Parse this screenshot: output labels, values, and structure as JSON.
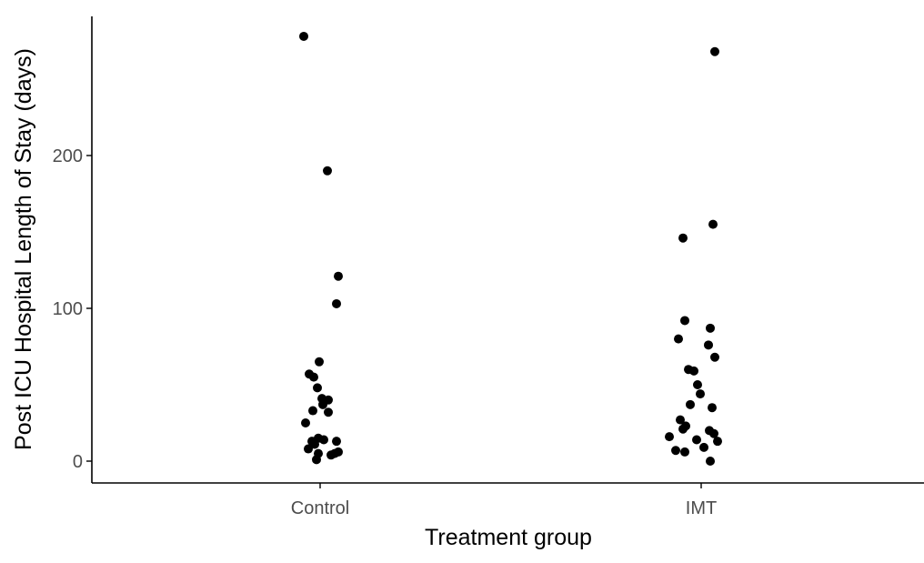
{
  "chart_data": {
    "type": "scatter",
    "title": "",
    "xlabel": "Treatment group",
    "ylabel": "Post ICU Hospital Length of Stay (days)",
    "categories": [
      "Control",
      "IMT"
    ],
    "yticks": [
      0,
      100,
      200
    ],
    "ylim": [
      -15,
      295
    ],
    "grid": false,
    "legend": "none",
    "point_color": "#000000",
    "axis_color": "#000000",
    "tick_label_color": "#4d4d4d",
    "series": [
      {
        "group": "Control",
        "points": [
          {
            "jitter": -0.18,
            "y": 278
          },
          {
            "jitter": 0.08,
            "y": 190
          },
          {
            "jitter": 0.2,
            "y": 121
          },
          {
            "jitter": 0.18,
            "y": 103
          },
          {
            "jitter": -0.01,
            "y": 65
          },
          {
            "jitter": -0.12,
            "y": 57
          },
          {
            "jitter": -0.07,
            "y": 55
          },
          {
            "jitter": -0.03,
            "y": 48
          },
          {
            "jitter": 0.02,
            "y": 41
          },
          {
            "jitter": 0.09,
            "y": 40
          },
          {
            "jitter": 0.03,
            "y": 37
          },
          {
            "jitter": -0.08,
            "y": 33
          },
          {
            "jitter": 0.09,
            "y": 32
          },
          {
            "jitter": -0.16,
            "y": 25
          },
          {
            "jitter": 0.18,
            "y": 13
          },
          {
            "jitter": -0.09,
            "y": 13
          },
          {
            "jitter": 0.04,
            "y": 14
          },
          {
            "jitter": -0.02,
            "y": 15
          },
          {
            "jitter": -0.06,
            "y": 11
          },
          {
            "jitter": -0.13,
            "y": 8
          },
          {
            "jitter": 0.12,
            "y": 4
          },
          {
            "jitter": 0.16,
            "y": 5
          },
          {
            "jitter": 0.2,
            "y": 6
          },
          {
            "jitter": -0.02,
            "y": 5
          },
          {
            "jitter": -0.04,
            "y": 1
          }
        ]
      },
      {
        "group": "IMT",
        "points": [
          {
            "jitter": 0.15,
            "y": 268
          },
          {
            "jitter": 0.13,
            "y": 155
          },
          {
            "jitter": -0.2,
            "y": 146
          },
          {
            "jitter": -0.18,
            "y": 92
          },
          {
            "jitter": 0.1,
            "y": 87
          },
          {
            "jitter": -0.25,
            "y": 80
          },
          {
            "jitter": 0.08,
            "y": 76
          },
          {
            "jitter": 0.15,
            "y": 68
          },
          {
            "jitter": -0.14,
            "y": 60
          },
          {
            "jitter": -0.08,
            "y": 59
          },
          {
            "jitter": -0.04,
            "y": 50
          },
          {
            "jitter": -0.01,
            "y": 44
          },
          {
            "jitter": -0.12,
            "y": 37
          },
          {
            "jitter": 0.12,
            "y": 35
          },
          {
            "jitter": -0.23,
            "y": 27
          },
          {
            "jitter": -0.17,
            "y": 23
          },
          {
            "jitter": -0.2,
            "y": 21
          },
          {
            "jitter": 0.09,
            "y": 20
          },
          {
            "jitter": 0.14,
            "y": 18
          },
          {
            "jitter": -0.35,
            "y": 16
          },
          {
            "jitter": 0.18,
            "y": 13
          },
          {
            "jitter": -0.05,
            "y": 14
          },
          {
            "jitter": 0.03,
            "y": 9
          },
          {
            "jitter": -0.28,
            "y": 7
          },
          {
            "jitter": -0.18,
            "y": 6
          },
          {
            "jitter": 0.1,
            "y": 0
          }
        ]
      }
    ]
  }
}
